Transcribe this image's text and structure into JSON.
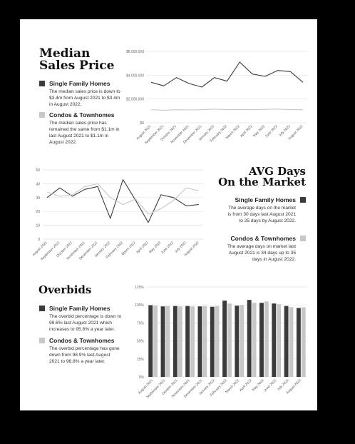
{
  "section1": {
    "title_line1": "Median",
    "title_line2": "Sales Price",
    "sfh_label": "Single Family Homes",
    "sfh_desc": "The median sales price is down to $3.4m from August 2021 to $3.4m in August 2022.",
    "condo_label": "Condos & Townhomes",
    "condo_desc": "The median sales price has remained the same from $1.1m in last August 2021 to $1.1m in August 2022."
  },
  "section2": {
    "title_line1": "AVG Days",
    "title_line2": "On the Market",
    "sfh_label": "Single Family Homes",
    "sfh_desc": "The average days on the market is from 30 days last August 2021 to 25 days by August 2022.",
    "condo_label": "Condos & Townhomes",
    "condo_desc": "The average days on market last August 2021 is 34 days up to 35 days in August 2022."
  },
  "section3": {
    "title": "Overbids",
    "sfh_label": "Single Family Homes",
    "sfh_desc": "The overbid percentage is down to 99.6% last August 2021 which increases to 95.8% a year later.",
    "condo_label": "Condos & Townhomes",
    "condo_desc": "The overbid percentage has gone down from 98.9% last August 2021 to 96.8% a year later."
  },
  "colors": {
    "dark": "#3b3b3b",
    "light": "#c7c7c7"
  },
  "chart_data": [
    {
      "type": "line",
      "categories": [
        "August 2021",
        "September 2021",
        "October 2021",
        "November 2021",
        "December 2021",
        "January 2022",
        "February 2022",
        "March 2022",
        "April 2022",
        "May 2022",
        "June 2022",
        "July 2022",
        "August 2022"
      ],
      "y_ticks": [
        "$0",
        "$2,000,000",
        "$4,000,000",
        "$6,000,000"
      ],
      "ylim": [
        0,
        6000000
      ],
      "series": [
        {
          "color": "dark",
          "values": [
            3400000,
            3100000,
            3800000,
            3300000,
            3000000,
            3800000,
            3500000,
            5100000,
            4100000,
            3900000,
            4400000,
            4300000,
            3400000
          ]
        },
        {
          "color": "light",
          "values": [
            1100000,
            1050000,
            1100000,
            1080000,
            1100000,
            1150000,
            1100000,
            1120000,
            1100000,
            1130000,
            1150000,
            1100000,
            1100000
          ]
        }
      ]
    },
    {
      "type": "line",
      "categories": [
        "August 2021",
        "September 2021",
        "October 2021",
        "November 2021",
        "December 2021",
        "January 2022",
        "February 2022",
        "March 2022",
        "April 2022",
        "May 2022",
        "June 2022",
        "July 2022",
        "August 2022"
      ],
      "y_ticks": [
        "0",
        "10",
        "20",
        "30",
        "40",
        "50"
      ],
      "ylim": [
        0,
        50
      ],
      "series": [
        {
          "color": "dark",
          "values": [
            30,
            37,
            31,
            36,
            38,
            15,
            43,
            28,
            12,
            32,
            30,
            24,
            25
          ]
        },
        {
          "color": "light",
          "values": [
            34,
            31,
            32,
            38,
            40,
            30,
            25,
            29,
            18,
            22,
            28,
            37,
            35
          ]
        }
      ]
    },
    {
      "type": "bar",
      "categories": [
        "August 2021",
        "September 2021",
        "October 2021",
        "November 2021",
        "December 2021",
        "January 2022",
        "February 2022",
        "March 2022",
        "April 2022",
        "May 2022",
        "June 2022",
        "July 2022",
        "August 2022"
      ],
      "y_ticks": [
        "0%",
        "25%",
        "50%",
        "75%",
        "100%",
        "125%"
      ],
      "ylim": [
        0,
        125
      ],
      "series": [
        {
          "color": "dark",
          "values": [
            99.6,
            98,
            98.5,
            98.5,
            98,
            97.5,
            106,
            99,
            107,
            103,
            102,
            98.5,
            95.8
          ]
        },
        {
          "color": "light",
          "values": [
            98.9,
            98.5,
            98,
            98,
            98.5,
            98.5,
            102,
            100,
            103,
            105,
            101,
            97,
            96.8
          ]
        }
      ]
    }
  ]
}
